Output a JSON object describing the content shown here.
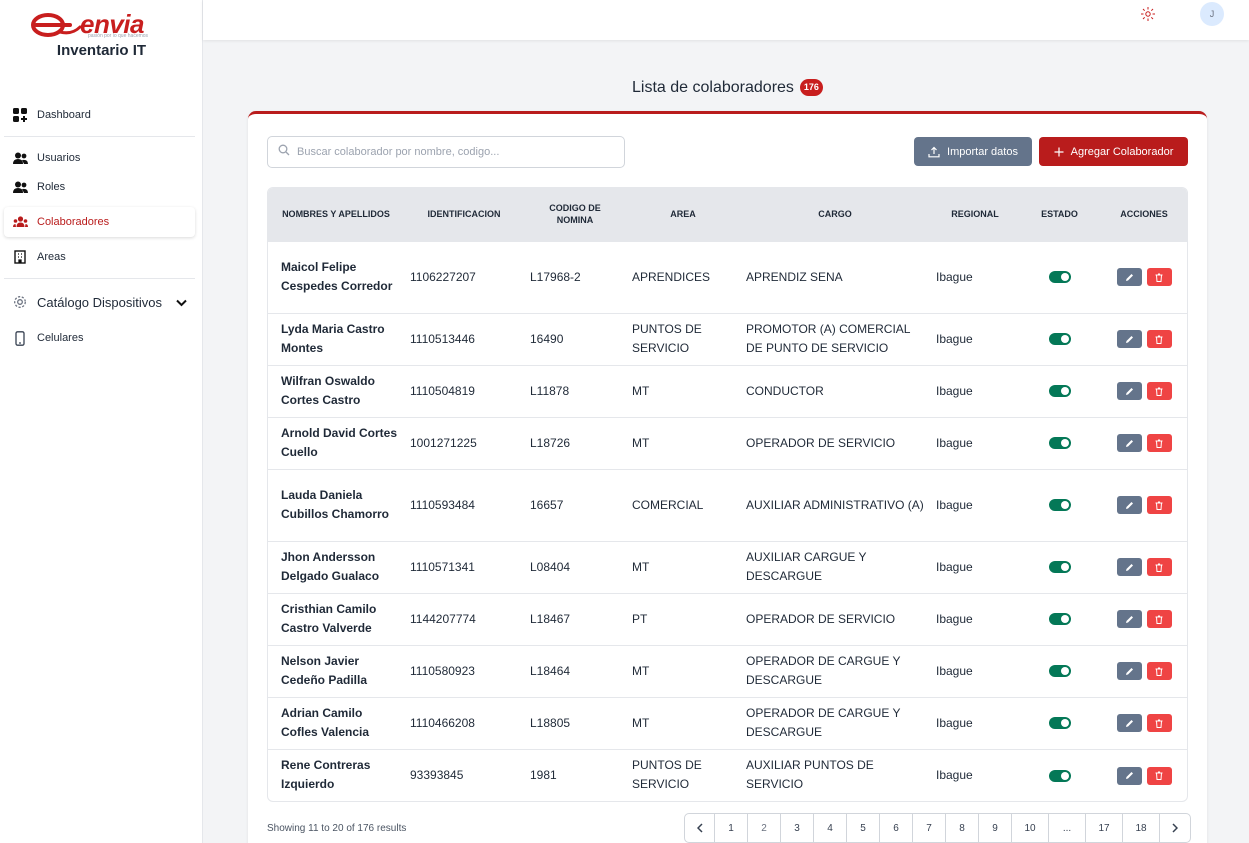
{
  "brand": {
    "logo_text": "envia",
    "logo_tagline": "pasión por lo que hacemos",
    "app_title": "Inventario IT"
  },
  "sidebar": {
    "items": [
      {
        "label": "Dashboard"
      },
      {
        "label": "Usuarios"
      },
      {
        "label": "Roles"
      },
      {
        "label": "Colaboradores"
      },
      {
        "label": "Areas"
      },
      {
        "label": "Catálogo Dispositivos"
      },
      {
        "label": "Celulares"
      }
    ]
  },
  "topbar": {
    "avatar_initial": "J"
  },
  "page": {
    "title": "Lista de colaboradores",
    "count_badge": "176"
  },
  "toolbar": {
    "search_placeholder": "Buscar colaborador por nombre, codigo...",
    "import_label": "Importar datos",
    "add_label": "Agregar Colaborador"
  },
  "table": {
    "headers": [
      "NOMBRES Y APELLIDOS",
      "IDENTIFICACION",
      "CODIGO DE NOMINA",
      "AREA",
      "CARGO",
      "REGIONAL",
      "ESTADO",
      "ACCIONES"
    ],
    "rows": [
      {
        "name": "Maicol Felipe Cespedes Corredor",
        "id": "1106227207",
        "code": "L17968-2",
        "area": "APRENDICES",
        "cargo": "APRENDIZ SENA",
        "regional": "Ibague"
      },
      {
        "name": "Lyda Maria Castro Montes",
        "id": "1110513446",
        "code": "16490",
        "area": "PUNTOS DE SERVICIO",
        "cargo": "PROMOTOR (A) COMERCIAL DE PUNTO DE SERVICIO",
        "regional": "Ibague"
      },
      {
        "name": "Wilfran Oswaldo Cortes Castro",
        "id": "1110504819",
        "code": "L11878",
        "area": "MT",
        "cargo": "CONDUCTOR",
        "regional": "Ibague"
      },
      {
        "name": "Arnold David Cortes Cuello",
        "id": "1001271225",
        "code": "L18726",
        "area": "MT",
        "cargo": "OPERADOR DE SERVICIO",
        "regional": "Ibague"
      },
      {
        "name": "Lauda Daniela Cubillos Chamorro",
        "id": "1110593484",
        "code": "16657",
        "area": "COMERCIAL",
        "cargo": "AUXILIAR ADMINISTRATIVO (A)",
        "regional": "Ibague"
      },
      {
        "name": "Jhon Andersson Delgado Gualaco",
        "id": "1110571341",
        "code": "L08404",
        "area": "MT",
        "cargo": "AUXILIAR CARGUE Y DESCARGUE",
        "regional": "Ibague"
      },
      {
        "name": "Cristhian Camilo Castro Valverde",
        "id": "1144207774",
        "code": "L18467",
        "area": "PT",
        "cargo": "OPERADOR DE SERVICIO",
        "regional": "Ibague"
      },
      {
        "name": "Nelson Javier Cedeño Padilla",
        "id": "1110580923",
        "code": "L18464",
        "area": "MT",
        "cargo": "OPERADOR DE CARGUE Y DESCARGUE",
        "regional": "Ibague"
      },
      {
        "name": "Adrian Camilo Cofles Valencia",
        "id": "1110466208",
        "code": "L18805",
        "area": "MT",
        "cargo": "OPERADOR DE CARGUE Y DESCARGUE",
        "regional": "Ibague"
      },
      {
        "name": "Rene Contreras Izquierdo",
        "id": "93393845",
        "code": "1981",
        "area": "PUNTOS DE SERVICIO",
        "cargo": "AUXILIAR PUNTOS DE SERVICIO",
        "regional": "Ibague"
      }
    ]
  },
  "footer": {
    "showing": "Showing 11 to 20 of 176 results",
    "pages": [
      "1",
      "2",
      "3",
      "4",
      "5",
      "6",
      "7",
      "8",
      "9",
      "10",
      "...",
      "17",
      "18"
    ],
    "current_page": "2"
  },
  "colors": {
    "brand_red": "#b91c1c",
    "slate_button": "#64748b",
    "toggle_on": "#047857",
    "delete_red": "#ef4444"
  }
}
